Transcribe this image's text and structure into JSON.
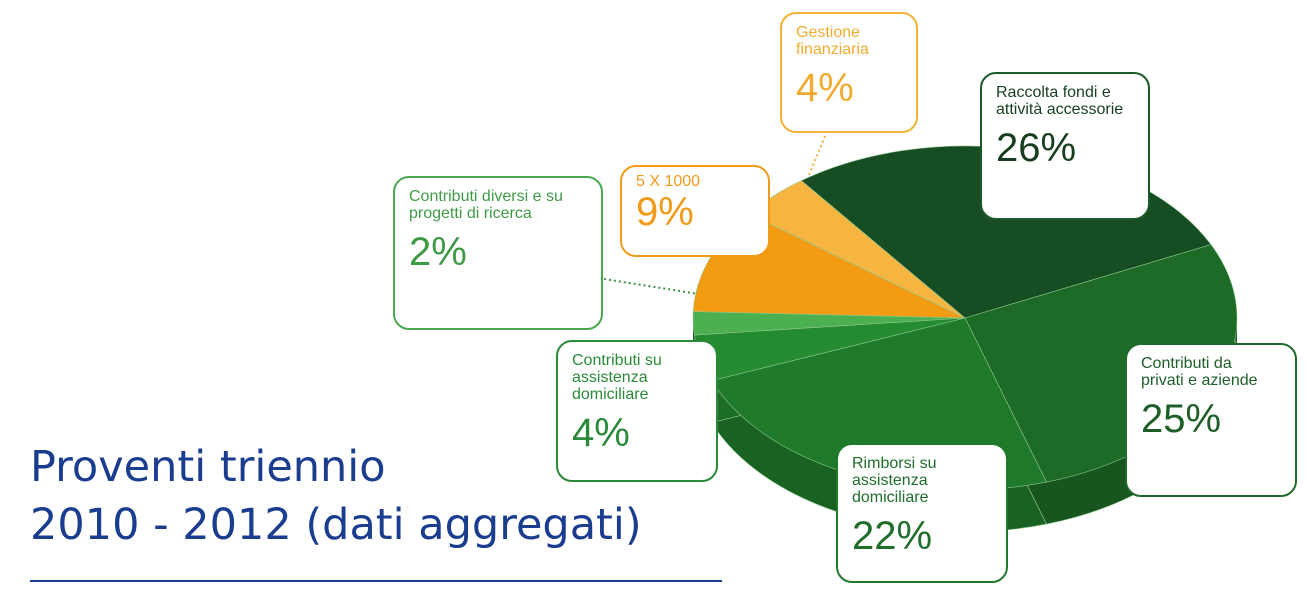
{
  "chart_data": {
    "type": "pie",
    "title": [
      "Proventi triennio",
      "2010 - 2012 (dati aggregati)"
    ],
    "categories": [
      "Raccolta fondi e attività accessorie",
      "Contributi da privati e aziende",
      "Rimborsi su assistenza domiciliare",
      "Contributi su assistenza domiciliare",
      "Contributi diversi e su progetti di ricerca",
      "5 X 1000",
      "Gestione finanziaria"
    ],
    "values": [
      26,
      25,
      22,
      4,
      2,
      9,
      4
    ],
    "value_labels": [
      "26%",
      "25%",
      "22%",
      "4%",
      "2%",
      "9%",
      "4%"
    ],
    "colors": [
      "#174d22",
      "#1e6a27",
      "#1f7a2b",
      "#248b30",
      "#4caf50",
      "#f29b13",
      "#f5b540"
    ]
  }
}
